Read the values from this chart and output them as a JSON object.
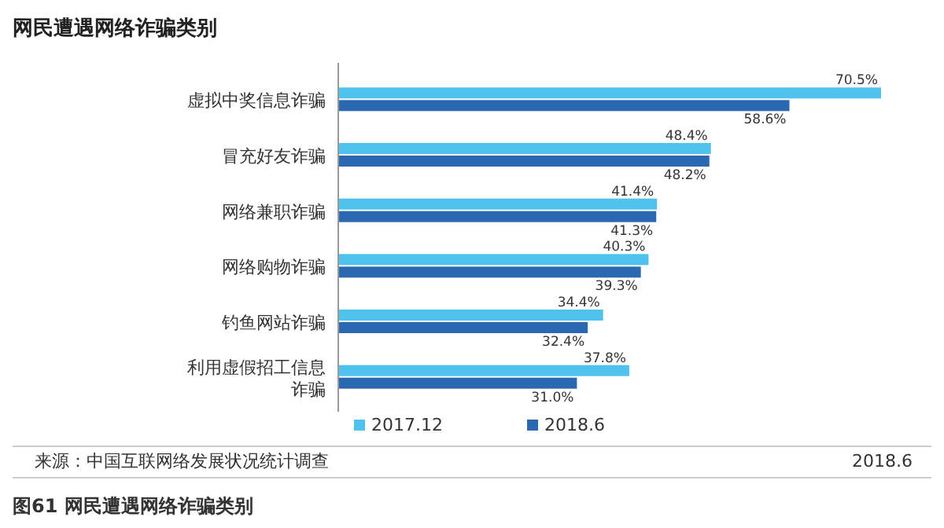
{
  "chart_data": {
    "type": "bar",
    "orientation": "horizontal",
    "title": "网民遭遇网络诈骗类别",
    "categories": [
      "虚拟中奖信息诈骗",
      "冒充好友诈骗",
      "网络兼职诈骗",
      "网络购物诈骗",
      "钓鱼网站诈骗",
      "利用虚假招工信息诈骗"
    ],
    "series": [
      {
        "name": "2017.12",
        "color": "#4fc3ee",
        "values": [
          70.5,
          48.4,
          41.4,
          40.3,
          34.4,
          37.8
        ],
        "value_labels": [
          "70.5%",
          "48.4%",
          "41.4%",
          "40.3%",
          "34.4%",
          "37.8%"
        ]
      },
      {
        "name": "2018.6",
        "color": "#2a68b1",
        "values": [
          58.6,
          48.2,
          41.3,
          39.3,
          32.4,
          31.0
        ],
        "value_labels": [
          "58.6%",
          "48.2%",
          "41.3%",
          "39.3%",
          "32.4%",
          "31.0%"
        ]
      }
    ],
    "legend": "bottom",
    "annotations": [
      "来源：中国互联网络发展状况统计调查",
      "2018.6",
      "图61 网民遭遇网络诈骗类别"
    ]
  }
}
